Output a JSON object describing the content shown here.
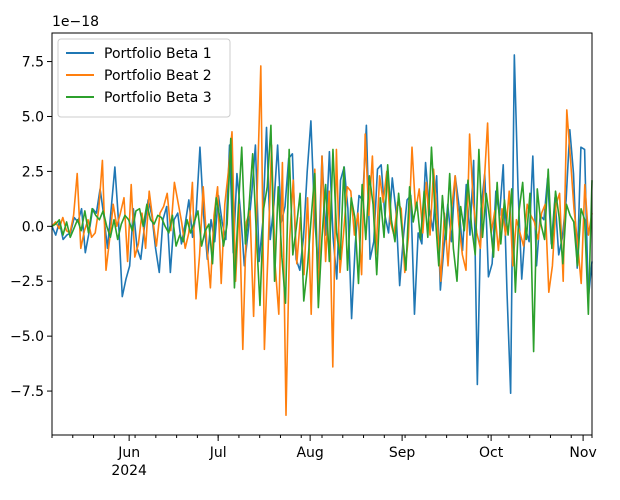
{
  "chart_data": {
    "type": "line",
    "title": "",
    "xlabel": "",
    "ylabel": "",
    "offset_label": "1e−18",
    "scale": 1e-18,
    "x_start": "2024-05-06",
    "x_end": "2024-11-04",
    "ylim": [
      -9.5,
      8.8
    ],
    "yticks": [
      -7.5,
      -5.0,
      -2.5,
      0.0,
      2.5,
      5.0,
      7.5
    ],
    "ytick_labels": [
      "−7.5",
      "−5.0",
      "−2.5",
      "0.0",
      "2.5",
      "5.0",
      "7.5"
    ],
    "xticks": [
      {
        "date": "2024-06-01",
        "label": "Jun",
        "sublabel": "2024"
      },
      {
        "date": "2024-07-01",
        "label": "Jul",
        "sublabel": ""
      },
      {
        "date": "2024-08-01",
        "label": "Aug",
        "sublabel": ""
      },
      {
        "date": "2024-09-01",
        "label": "Sep",
        "sublabel": ""
      },
      {
        "date": "2024-10-01",
        "label": "Oct",
        "sublabel": ""
      },
      {
        "date": "2024-11-01",
        "label": "Nov",
        "sublabel": ""
      }
    ],
    "grid": false,
    "legend_position": "upper left",
    "series": [
      {
        "name": "Portfolio Beta 1",
        "color": "#1f77b4",
        "values": [
          0.0,
          -0.4,
          0.2,
          -0.6,
          -0.4,
          -0.3,
          0.4,
          0.2,
          0.8,
          -1.2,
          -0.3,
          0.8,
          0.6,
          1.7,
          0.5,
          -1.0,
          0.8,
          2.7,
          0.2,
          -3.2,
          -2.4,
          -1.8,
          0.8,
          -1.0,
          -1.5,
          0.0,
          1.2,
          0.5,
          -1.0,
          -2.1,
          0.3,
          0.9,
          -2.1,
          0.3,
          0.6,
          -0.8,
          0.1,
          1.2,
          -0.5,
          0.7,
          3.6,
          0.5,
          -1.5,
          0.3,
          -0.7,
          1.4,
          0.2,
          -0.6,
          3.7,
          -1.2,
          2.4,
          0.6,
          -1.8,
          -0.3,
          1.5,
          3.7,
          -1.6,
          0.2,
          4.5,
          -0.6,
          1.0,
          3.7,
          0.2,
          0.9,
          3.1,
          3.3,
          -1.5,
          -2.0,
          -0.5,
          2.5,
          4.8,
          0.4,
          -1.9,
          3.2,
          -0.4,
          3.4,
          -0.5,
          -2.4,
          2.1,
          2.7,
          0.8,
          -4.2,
          -0.8,
          1.4,
          1.2,
          4.6,
          -1.5,
          -0.7,
          2.6,
          2.8,
          0.5,
          -0.3,
          2.2,
          0.7,
          -2.7,
          -0.5,
          1.2,
          1.4,
          -4.0,
          -0.3,
          -0.8,
          2.9,
          0.8,
          -0.2,
          2.3,
          -2.9,
          -0.9,
          1.0,
          -0.7,
          2.3,
          1.0,
          -1.1,
          1.9,
          -0.4,
          3.0,
          -7.2,
          0.8,
          2.4,
          -2.3,
          -1.7,
          1.6,
          0.5,
          2.8,
          -2.9,
          -7.6,
          7.8,
          1.7,
          -2.4,
          -0.1,
          -0.7,
          3.2,
          -1.8,
          0.5,
          0.3,
          2.2,
          -0.8,
          1.3,
          -1.3,
          -0.5,
          1.2,
          4.4,
          2.4,
          -1.9,
          3.6,
          3.5,
          -3.3,
          -1.6
        ]
      },
      {
        "name": "Portfolio Beat 2",
        "color": "#ff7f0e",
        "values": [
          0.0,
          0.2,
          -0.1,
          0.4,
          -0.2,
          -0.3,
          0.5,
          2.4,
          -1.0,
          -0.2,
          0.3,
          -0.5,
          -0.3,
          0.8,
          3.0,
          -2.0,
          -0.6,
          1.0,
          0.0,
          0.6,
          1.3,
          -1.6,
          1.9,
          -1.4,
          -0.8,
          0.6,
          -1.0,
          1.6,
          0.3,
          -0.9,
          0.6,
          0.9,
          1.5,
          -0.2,
          2.0,
          1.1,
          0.2,
          -1.0,
          -0.3,
          2.0,
          -3.3,
          -1.3,
          1.8,
          -0.8,
          -2.8,
          0.5,
          1.8,
          -2.6,
          1.0,
          2.5,
          4.3,
          -2.5,
          1.0,
          -5.6,
          0.2,
          0.7,
          -4.1,
          1.6,
          7.3,
          -5.6,
          -1.2,
          3.7,
          -1.8,
          -4.0,
          2.9,
          -8.6,
          -0.6,
          2.1,
          -1.7,
          0.4,
          -2.2,
          1.3,
          -4.0,
          2.6,
          -3.4,
          3.2,
          -1.6,
          1.6,
          -6.4,
          3.5,
          -2.1,
          -0.3,
          1.8,
          1.6,
          -0.4,
          0.6,
          -2.2,
          4.2,
          0.5,
          3.2,
          -1.3,
          2.3,
          1.1,
          2.5,
          0.2,
          -0.4,
          1.1,
          0.8,
          -2.1,
          -0.5,
          3.6,
          0.7,
          1.7,
          -0.3,
          2.0,
          -0.4,
          2.6,
          0.3,
          -2.5,
          0.6,
          -1.8,
          0.8,
          2.3,
          0.1,
          -1.3,
          -2.0,
          4.2,
          1.1,
          -0.3,
          -1.0,
          1.8,
          4.7,
          -0.3,
          0.7,
          -1.1,
          0.8,
          -0.4,
          1.6,
          -1.8,
          0.3,
          -0.3,
          -0.9,
          1.0,
          0.5,
          0.2,
          -0.6,
          0.6,
          1.0,
          -3.0,
          -1.8,
          1.0,
          1.5,
          -2.5,
          5.3,
          3.1,
          0.8,
          -0.8,
          -2.6,
          1.9,
          -0.4,
          0.6
        ]
      },
      {
        "name": "Portfolio Beta 3",
        "color": "#2ca02c",
        "values": [
          0.0,
          0.1,
          0.3,
          -0.4,
          0.2,
          -0.5,
          -0.1,
          0.3,
          -0.2,
          0.7,
          -0.3,
          0.8,
          0.5,
          0.3,
          0.7,
          0.0,
          -0.5,
          0.3,
          -0.6,
          0.1,
          0.5,
          0.3,
          -0.2,
          0.7,
          0.8,
          0.0,
          1.0,
          0.3,
          0.1,
          0.5,
          0.4,
          0.0,
          -0.3,
          0.5,
          -0.9,
          -0.4,
          -0.7,
          0.3,
          -0.3,
          0.2,
          0.7,
          -0.9,
          -0.2,
          0.1,
          -1.7,
          1.3,
          0.4,
          -0.9,
          0.1,
          4.0,
          -2.8,
          0.6,
          3.6,
          -0.8,
          0.9,
          3.3,
          -0.3,
          -3.6,
          0.8,
          1.8,
          4.6,
          -2.5,
          1.8,
          -1.4,
          -3.5,
          3.5,
          -1.3,
          0.0,
          1.5,
          -3.4,
          -1.9,
          0.3,
          2.4,
          -3.7,
          -0.5,
          1.9,
          -1.6,
          3.5,
          -0.3,
          -1.5,
          2.7,
          -2.0,
          1.3,
          0.4,
          -2.6,
          1.9,
          -0.6,
          2.3,
          1.0,
          -2.2,
          1.3,
          -0.5,
          2.8,
          0.3,
          -0.7,
          1.5,
          -0.3,
          -2.0,
          1.8,
          0.2,
          1.1,
          -0.6,
          1.6,
          -0.5,
          3.6,
          0.6,
          -1.8,
          1.4,
          -0.6,
          2.4,
          -1.0,
          -2.5,
          0.9,
          -0.2,
          2.1,
          0.0,
          -1.3,
          3.5,
          -0.5,
          1.5,
          0.3,
          -1.4,
          2.0,
          -0.8,
          1.2,
          -0.4,
          1.7,
          -3.0,
          0.7,
          2.0,
          -0.6,
          1.5,
          -5.7,
          1.7,
          0.1,
          -0.6,
          2.6,
          -1.0,
          1.6,
          0.4,
          -1.7,
          1.0,
          0.5,
          0.2,
          -1.8,
          0.8,
          0.3,
          -4.0,
          2.1
        ]
      }
    ]
  }
}
